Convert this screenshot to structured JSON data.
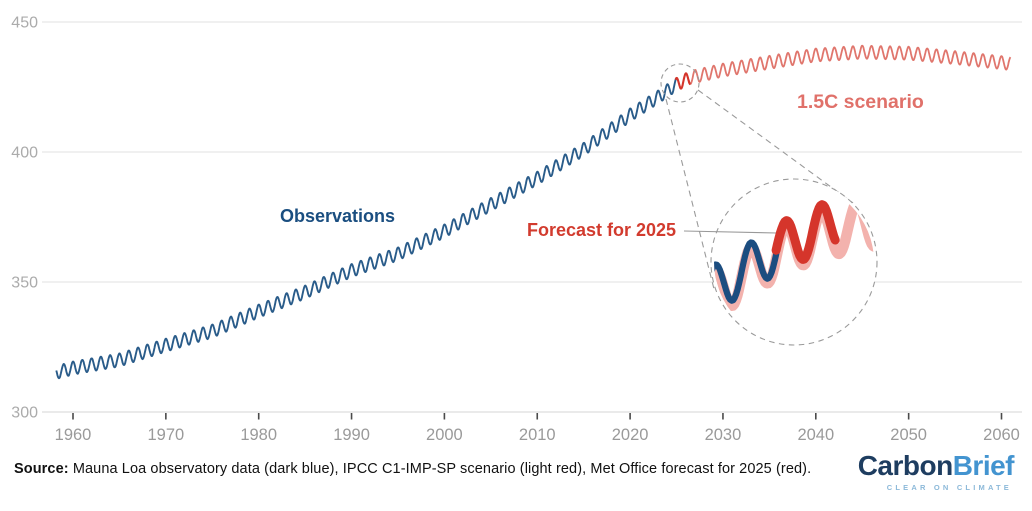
{
  "chart_data": {
    "type": "line",
    "title": "",
    "xlabel": "",
    "ylabel": "",
    "xlim": [
      1957,
      2062
    ],
    "ylim": [
      300,
      450
    ],
    "xticks": [
      1960,
      1970,
      1980,
      1990,
      2000,
      2010,
      2020,
      2030,
      2040,
      2050,
      2060
    ],
    "yticks": [
      300,
      350,
      400,
      450
    ],
    "grid": "horizontal",
    "legend_position": "direct-labels",
    "seasonal_cycle_amplitude_ppm": 2.5,
    "series": [
      {
        "name": "Observations",
        "description": "Mauna Loa observatory data",
        "color_key": "observations",
        "range": [
          1958.2,
          2025.0
        ],
        "keyframes": [
          [
            1958.2,
            315.2
          ],
          [
            1960,
            316.9
          ],
          [
            1965,
            320.0
          ],
          [
            1970,
            325.7
          ],
          [
            1975,
            331.1
          ],
          [
            1980,
            338.8
          ],
          [
            1985,
            346.1
          ],
          [
            1990,
            354.4
          ],
          [
            1995,
            360.8
          ],
          [
            2000,
            369.6
          ],
          [
            2005,
            379.8
          ],
          [
            2010,
            389.9
          ],
          [
            2015,
            401.0
          ],
          [
            2020,
            414.2
          ],
          [
            2023,
            421.1
          ],
          [
            2025,
            426.0
          ]
        ]
      },
      {
        "name": "Forecast for 2025",
        "description": "Met Office forecast for 2025",
        "color_key": "forecast",
        "range": [
          2024.9,
          2026.5
        ],
        "keyframes": [
          [
            2024.9,
            425.8
          ],
          [
            2025.5,
            426.9
          ],
          [
            2026.5,
            428.6
          ]
        ]
      },
      {
        "name": "1.5C scenario",
        "description": "IPCC C1-IMP-SP scenario",
        "color_key": "scenario",
        "range": [
          2026.3,
          2061.0
        ],
        "keyframes": [
          [
            2026.3,
            428.5
          ],
          [
            2030,
            431.5
          ],
          [
            2035,
            434.5
          ],
          [
            2040,
            437.3
          ],
          [
            2045,
            438.4
          ],
          [
            2050,
            438.0
          ],
          [
            2055,
            436.3
          ],
          [
            2061,
            434.0
          ]
        ]
      }
    ],
    "inset": {
      "kind": "magnifier-circle",
      "magnified_years": [
        2023,
        2027.8
      ],
      "series_shown": [
        "Observations",
        "Forecast for 2025",
        "1.5C scenario"
      ],
      "inset_scenario_keyframes": [
        [
          2023.0,
          420.5
        ],
        [
          2024,
          423.0
        ],
        [
          2025,
          425.5
        ],
        [
          2026,
          427.0
        ],
        [
          2027,
          428.0
        ],
        [
          2028,
          428.6
        ]
      ]
    },
    "annotations": {
      "observations": "Observations",
      "forecast": "Forecast for 2025",
      "scenario": "1.5C scenario"
    }
  },
  "source": {
    "prefix": "Source:",
    "text": " Mauna Loa observatory data (dark blue), IPCC C1-IMP-SP scenario (light red), Met Office forecast for 2025 (red)."
  },
  "logo": {
    "part1": "Carbon",
    "part2": "Brief",
    "tagline": "CLEAR ON CLIMATE"
  },
  "colors": {
    "observations": "#2a5c8a",
    "observations_inset": "#1c4d80",
    "forecast": "#d5352b",
    "scenario": "#e0766d",
    "scenario_inset": "#f3b2ad",
    "grid": "#ececec",
    "axis_line": "#e4e4e4",
    "tick": "#4a4a4a",
    "tick_label": "#9a9a9a",
    "dashed_outline": "#9a9a9a",
    "pointer_line": "#999999"
  }
}
